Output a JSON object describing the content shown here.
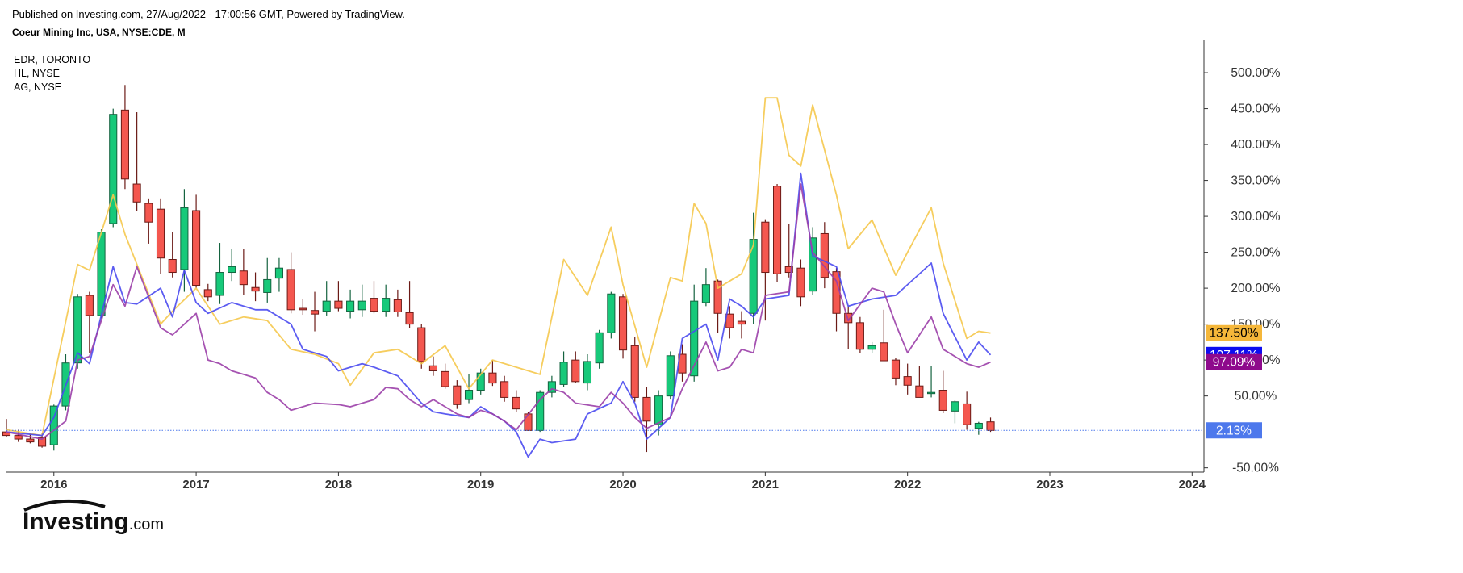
{
  "header": {
    "published": "Published on Investing.com, 27/Aug/2022 - 17:00:56 GMT, Powered by TradingView.",
    "symbol": "Coeur Mining Inc, USA, NYSE:CDE, M"
  },
  "legend": {
    "items": [
      {
        "label": "EDR, TORONTO",
        "color": "#f5c84c"
      },
      {
        "label": "HL, NYSE",
        "color": "#4a4af0"
      },
      {
        "label": "AG, NYSE",
        "color": "#9b3fa8"
      }
    ]
  },
  "logo": {
    "text_main": "Investing",
    "text_suffix": ".com"
  },
  "colors": {
    "up": "#17c97a",
    "down": "#f4574f",
    "wick_up": "#14633f",
    "wick_down": "#6b1a16",
    "axis": "#333333"
  },
  "tags": [
    {
      "text": "137.50%",
      "value": 137.5,
      "bg": "#f5b73a",
      "fg": "#000000"
    },
    {
      "text": "107.11%",
      "value": 107.11,
      "bg": "#0d0df0",
      "fg": "#ffffff"
    },
    {
      "text": "97.09%",
      "value": 97.09,
      "bg": "#8e0a8c",
      "fg": "#ffffff"
    },
    {
      "text": "2.13%",
      "value": 2.13,
      "bg": "#4d78ec",
      "fg": "#ffffff"
    }
  ],
  "chart_data": {
    "type": "candlestick",
    "title": "Coeur Mining Inc, USA, NYSE:CDE, M",
    "y_unit": "%",
    "y_ticks": [
      "500.00%",
      "450.00%",
      "400.00%",
      "350.00%",
      "300.00%",
      "250.00%",
      "200.00%",
      "150.00%",
      "100.00%",
      "50.00%",
      "-50.00%"
    ],
    "y_tick_values": [
      500,
      450,
      400,
      350,
      300,
      250,
      200,
      150,
      100,
      50,
      -50
    ],
    "x_ticks": [
      "2016",
      "2017",
      "2018",
      "2019",
      "2020",
      "2021",
      "2022",
      "2023",
      "2024"
    ],
    "ylim": [
      -56,
      545
    ],
    "xlim": [
      "2015-09",
      "2024-02"
    ],
    "baseline_value": 2.13,
    "candles": [
      {
        "t": "2015-09",
        "o": 0,
        "h": 18,
        "l": -7,
        "c": -5
      },
      {
        "t": "2015-10",
        "o": -5,
        "h": 3,
        "l": -14,
        "c": -10
      },
      {
        "t": "2015-11",
        "o": -10,
        "h": -1,
        "l": -16,
        "c": -14
      },
      {
        "t": "2015-12",
        "o": -8,
        "h": -2,
        "l": -22,
        "c": -20
      },
      {
        "t": "2016-01",
        "o": -18,
        "h": 38,
        "l": -26,
        "c": 36
      },
      {
        "t": "2016-02",
        "o": 36,
        "h": 108,
        "l": 30,
        "c": 96
      },
      {
        "t": "2016-03",
        "o": 96,
        "h": 192,
        "l": 88,
        "c": 188
      },
      {
        "t": "2016-04",
        "o": 190,
        "h": 195,
        "l": 110,
        "c": 162
      },
      {
        "t": "2016-05",
        "o": 162,
        "h": 282,
        "l": 158,
        "c": 278
      },
      {
        "t": "2016-06",
        "o": 290,
        "h": 450,
        "l": 285,
        "c": 442
      },
      {
        "t": "2016-07",
        "o": 448,
        "h": 483,
        "l": 338,
        "c": 352
      },
      {
        "t": "2016-08",
        "o": 345,
        "h": 445,
        "l": 308,
        "c": 320
      },
      {
        "t": "2016-09",
        "o": 318,
        "h": 325,
        "l": 262,
        "c": 292
      },
      {
        "t": "2016-10",
        "o": 310,
        "h": 325,
        "l": 220,
        "c": 242
      },
      {
        "t": "2016-11",
        "o": 240,
        "h": 278,
        "l": 215,
        "c": 222
      },
      {
        "t": "2016-12",
        "o": 226,
        "h": 338,
        "l": 195,
        "c": 312
      },
      {
        "t": "2017-01",
        "o": 308,
        "h": 330,
        "l": 200,
        "c": 204
      },
      {
        "t": "2017-02",
        "o": 198,
        "h": 206,
        "l": 182,
        "c": 188
      },
      {
        "t": "2017-03",
        "o": 190,
        "h": 263,
        "l": 178,
        "c": 222
      },
      {
        "t": "2017-04",
        "o": 222,
        "h": 255,
        "l": 210,
        "c": 230
      },
      {
        "t": "2017-05",
        "o": 224,
        "h": 255,
        "l": 190,
        "c": 205
      },
      {
        "t": "2017-06",
        "o": 201,
        "h": 222,
        "l": 182,
        "c": 196
      },
      {
        "t": "2017-07",
        "o": 194,
        "h": 242,
        "l": 180,
        "c": 212
      },
      {
        "t": "2017-08",
        "o": 214,
        "h": 242,
        "l": 195,
        "c": 228
      },
      {
        "t": "2017-09",
        "o": 226,
        "h": 250,
        "l": 165,
        "c": 170
      },
      {
        "t": "2017-10",
        "o": 172,
        "h": 185,
        "l": 163,
        "c": 170
      },
      {
        "t": "2017-11",
        "o": 169,
        "h": 195,
        "l": 140,
        "c": 164
      },
      {
        "t": "2017-12",
        "o": 168,
        "h": 210,
        "l": 162,
        "c": 182
      },
      {
        "t": "2018-01",
        "o": 182,
        "h": 210,
        "l": 168,
        "c": 172
      },
      {
        "t": "2018-02",
        "o": 168,
        "h": 198,
        "l": 158,
        "c": 182
      },
      {
        "t": "2018-03",
        "o": 170,
        "h": 205,
        "l": 160,
        "c": 182
      },
      {
        "t": "2018-04",
        "o": 186,
        "h": 210,
        "l": 165,
        "c": 168
      },
      {
        "t": "2018-05",
        "o": 168,
        "h": 205,
        "l": 160,
        "c": 186
      },
      {
        "t": "2018-06",
        "o": 184,
        "h": 198,
        "l": 160,
        "c": 167
      },
      {
        "t": "2018-07",
        "o": 166,
        "h": 210,
        "l": 145,
        "c": 150
      },
      {
        "t": "2018-08",
        "o": 145,
        "h": 150,
        "l": 88,
        "c": 98
      },
      {
        "t": "2018-09",
        "o": 92,
        "h": 105,
        "l": 78,
        "c": 85
      },
      {
        "t": "2018-10",
        "o": 84,
        "h": 95,
        "l": 60,
        "c": 63
      },
      {
        "t": "2018-11",
        "o": 64,
        "h": 72,
        "l": 32,
        "c": 38
      },
      {
        "t": "2018-12",
        "o": 45,
        "h": 80,
        "l": 40,
        "c": 58
      },
      {
        "t": "2019-01",
        "o": 58,
        "h": 88,
        "l": 52,
        "c": 82
      },
      {
        "t": "2019-02",
        "o": 82,
        "h": 100,
        "l": 64,
        "c": 68
      },
      {
        "t": "2019-03",
        "o": 70,
        "h": 78,
        "l": 42,
        "c": 48
      },
      {
        "t": "2019-04",
        "o": 48,
        "h": 58,
        "l": 28,
        "c": 32
      },
      {
        "t": "2019-05",
        "o": 25,
        "h": 28,
        "l": 2,
        "c": 2
      },
      {
        "t": "2019-06",
        "o": 2,
        "h": 58,
        "l": 0,
        "c": 55
      },
      {
        "t": "2019-07",
        "o": 55,
        "h": 78,
        "l": 48,
        "c": 70
      },
      {
        "t": "2019-08",
        "o": 66,
        "h": 112,
        "l": 62,
        "c": 97
      },
      {
        "t": "2019-09",
        "o": 100,
        "h": 112,
        "l": 68,
        "c": 70
      },
      {
        "t": "2019-10",
        "o": 68,
        "h": 108,
        "l": 58,
        "c": 98
      },
      {
        "t": "2019-11",
        "o": 96,
        "h": 142,
        "l": 88,
        "c": 138
      },
      {
        "t": "2019-12",
        "o": 138,
        "h": 195,
        "l": 130,
        "c": 192
      },
      {
        "t": "2020-01",
        "o": 188,
        "h": 192,
        "l": 102,
        "c": 114
      },
      {
        "t": "2020-02",
        "o": 120,
        "h": 132,
        "l": 42,
        "c": 48
      },
      {
        "t": "2020-03",
        "o": 48,
        "h": 62,
        "l": -28,
        "c": 15
      },
      {
        "t": "2020-04",
        "o": 10,
        "h": 58,
        "l": -5,
        "c": 50
      },
      {
        "t": "2020-05",
        "o": 50,
        "h": 112,
        "l": 45,
        "c": 106
      },
      {
        "t": "2020-06",
        "o": 108,
        "h": 122,
        "l": 70,
        "c": 82
      },
      {
        "t": "2020-07",
        "o": 78,
        "h": 205,
        "l": 70,
        "c": 182
      },
      {
        "t": "2020-08",
        "o": 180,
        "h": 228,
        "l": 175,
        "c": 205
      },
      {
        "t": "2020-09",
        "o": 210,
        "h": 212,
        "l": 138,
        "c": 165
      },
      {
        "t": "2020-10",
        "o": 164,
        "h": 175,
        "l": 130,
        "c": 145
      },
      {
        "t": "2020-11",
        "o": 154,
        "h": 168,
        "l": 130,
        "c": 150
      },
      {
        "t": "2020-12",
        "o": 165,
        "h": 305,
        "l": 150,
        "c": 268
      },
      {
        "t": "2021-01",
        "o": 292,
        "h": 296,
        "l": 155,
        "c": 222
      },
      {
        "t": "2021-02",
        "o": 342,
        "h": 345,
        "l": 208,
        "c": 220
      },
      {
        "t": "2021-03",
        "o": 230,
        "h": 290,
        "l": 215,
        "c": 222
      },
      {
        "t": "2021-04",
        "o": 228,
        "h": 240,
        "l": 175,
        "c": 188
      },
      {
        "t": "2021-05",
        "o": 196,
        "h": 285,
        "l": 190,
        "c": 270
      },
      {
        "t": "2021-06",
        "o": 276,
        "h": 292,
        "l": 200,
        "c": 215
      },
      {
        "t": "2021-07",
        "o": 223,
        "h": 228,
        "l": 140,
        "c": 165
      },
      {
        "t": "2021-08",
        "o": 165,
        "h": 175,
        "l": 115,
        "c": 152
      },
      {
        "t": "2021-09",
        "o": 152,
        "h": 160,
        "l": 110,
        "c": 115
      },
      {
        "t": "2021-10",
        "o": 115,
        "h": 125,
        "l": 110,
        "c": 120
      },
      {
        "t": "2021-11",
        "o": 124,
        "h": 170,
        "l": 105,
        "c": 99
      },
      {
        "t": "2021-12",
        "o": 100,
        "h": 103,
        "l": 65,
        "c": 75
      },
      {
        "t": "2022-01",
        "o": 77,
        "h": 95,
        "l": 52,
        "c": 65
      },
      {
        "t": "2022-02",
        "o": 64,
        "h": 92,
        "l": 50,
        "c": 48
      },
      {
        "t": "2022-03",
        "o": 55,
        "h": 92,
        "l": 48,
        "c": 55
      },
      {
        "t": "2022-04",
        "o": 58,
        "h": 85,
        "l": 26,
        "c": 30
      },
      {
        "t": "2022-05",
        "o": 29,
        "h": 44,
        "l": 12,
        "c": 42
      },
      {
        "t": "2022-06",
        "o": 39,
        "h": 56,
        "l": 3,
        "c": 10
      },
      {
        "t": "2022-07",
        "o": 5,
        "h": 14,
        "l": -4,
        "c": 12
      },
      {
        "t": "2022-08",
        "o": 14,
        "h": 20,
        "l": 0,
        "c": 2
      }
    ],
    "series": [
      {
        "name": "EDR, TORONTO",
        "color": "#f5c84c",
        "t": [
          "2015-09",
          "2015-12",
          "2016-03",
          "2016-04",
          "2016-06",
          "2016-07",
          "2016-10",
          "2016-11",
          "2017-01",
          "2017-03",
          "2017-05",
          "2017-07",
          "2017-09",
          "2017-11",
          "2018-01",
          "2018-02",
          "2018-04",
          "2018-06",
          "2018-08",
          "2018-10",
          "2018-12",
          "2019-02",
          "2019-04",
          "2019-06",
          "2019-08",
          "2019-10",
          "2019-12",
          "2020-01",
          "2020-03",
          "2020-05",
          "2020-06",
          "2020-07",
          "2020-08",
          "2020-09",
          "2020-11",
          "2020-12",
          "2021-01",
          "2021-02",
          "2021-03",
          "2021-04",
          "2021-05",
          "2021-07",
          "2021-08",
          "2021-10",
          "2021-12",
          "2022-01",
          "2022-03",
          "2022-04",
          "2022-06",
          "2022-07",
          "2022-08"
        ],
        "v": [
          3,
          -5,
          233,
          225,
          330,
          275,
          150,
          168,
          200,
          150,
          160,
          155,
          115,
          108,
          95,
          65,
          110,
          115,
          95,
          120,
          60,
          100,
          90,
          80,
          240,
          190,
          285,
          205,
          90,
          215,
          210,
          318,
          290,
          200,
          220,
          260,
          465,
          465,
          385,
          370,
          455,
          330,
          255,
          295,
          218,
          250,
          312,
          235,
          130,
          140,
          137.5
        ]
      },
      {
        "name": "HL, NYSE",
        "color": "#4a4af0",
        "t": [
          "2015-09",
          "2015-12",
          "2016-01",
          "2016-03",
          "2016-04",
          "2016-06",
          "2016-07",
          "2016-08",
          "2016-10",
          "2016-11",
          "2016-12",
          "2017-01",
          "2017-02",
          "2017-04",
          "2017-06",
          "2017-07",
          "2017-09",
          "2017-10",
          "2017-12",
          "2018-01",
          "2018-03",
          "2018-04",
          "2018-06",
          "2018-08",
          "2018-09",
          "2018-10",
          "2018-12",
          "2019-01",
          "2019-03",
          "2019-04",
          "2019-05",
          "2019-06",
          "2019-07",
          "2019-09",
          "2019-10",
          "2019-12",
          "2020-01",
          "2020-02",
          "2020-03",
          "2020-05",
          "2020-06",
          "2020-08",
          "2020-09",
          "2020-10",
          "2020-11",
          "2020-12",
          "2021-01",
          "2021-03",
          "2021-04",
          "2021-05",
          "2021-07",
          "2021-08",
          "2021-10",
          "2021-12",
          "2022-03",
          "2022-04",
          "2022-06",
          "2022-07",
          "2022-08"
        ],
        "v": [
          0,
          -5,
          20,
          110,
          95,
          230,
          180,
          178,
          200,
          160,
          225,
          180,
          165,
          180,
          170,
          170,
          150,
          115,
          105,
          85,
          95,
          90,
          78,
          40,
          28,
          25,
          20,
          35,
          15,
          0,
          -35,
          -10,
          -15,
          -10,
          25,
          40,
          70,
          40,
          -10,
          20,
          130,
          150,
          100,
          185,
          175,
          160,
          185,
          190,
          360,
          245,
          230,
          175,
          185,
          190,
          235,
          165,
          100,
          125,
          107.11
        ]
      },
      {
        "name": "AG, NYSE",
        "color": "#9b3fa8",
        "t": [
          "2015-09",
          "2015-12",
          "2016-02",
          "2016-03",
          "2016-04",
          "2016-06",
          "2016-07",
          "2016-08",
          "2016-10",
          "2016-11",
          "2017-01",
          "2017-02",
          "2017-03",
          "2017-04",
          "2017-05",
          "2017-06",
          "2017-07",
          "2017-08",
          "2017-09",
          "2017-11",
          "2018-01",
          "2018-02",
          "2018-04",
          "2018-05",
          "2018-06",
          "2018-07",
          "2018-08",
          "2018-09",
          "2018-11",
          "2018-12",
          "2019-01",
          "2019-02",
          "2019-03",
          "2019-04",
          "2019-06",
          "2019-07",
          "2019-08",
          "2019-09",
          "2019-11",
          "2019-12",
          "2020-01",
          "2020-02",
          "2020-03",
          "2020-05",
          "2020-06",
          "2020-08",
          "2020-09",
          "2020-10",
          "2020-11",
          "2020-12",
          "2021-01",
          "2021-03",
          "2021-04",
          "2021-05",
          "2021-07",
          "2021-08",
          "2021-10",
          "2021-11",
          "2021-12",
          "2022-01",
          "2022-03",
          "2022-04",
          "2022-06",
          "2022-07",
          "2022-08"
        ],
        "v": [
          0,
          -10,
          15,
          100,
          105,
          205,
          175,
          230,
          145,
          135,
          165,
          100,
          95,
          85,
          80,
          75,
          55,
          45,
          30,
          40,
          38,
          35,
          45,
          62,
          60,
          45,
          35,
          45,
          25,
          20,
          30,
          25,
          15,
          3,
          45,
          60,
          55,
          40,
          35,
          55,
          40,
          20,
          5,
          20,
          60,
          125,
          85,
          90,
          115,
          110,
          190,
          195,
          345,
          250,
          210,
          155,
          200,
          195,
          150,
          110,
          160,
          115,
          95,
          90,
          97.09
        ]
      }
    ]
  }
}
